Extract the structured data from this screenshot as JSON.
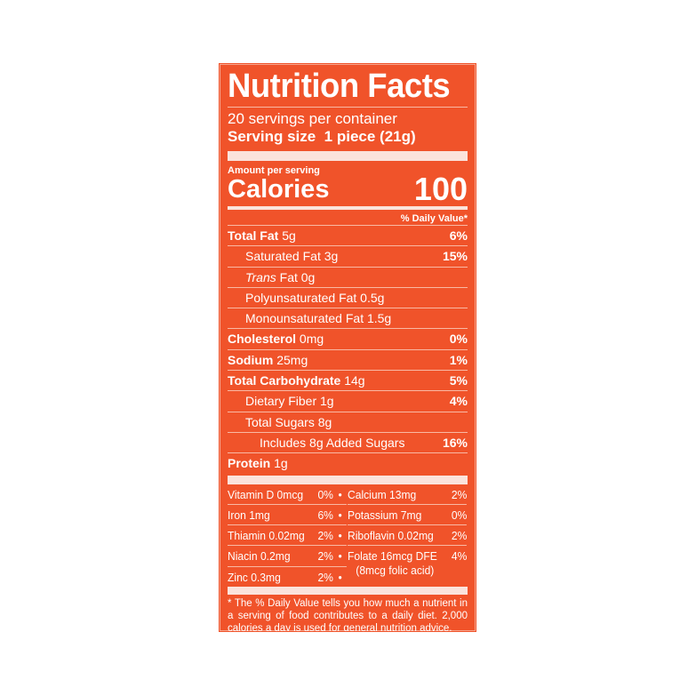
{
  "title": "Nutrition Facts",
  "servings": "20 servings per container",
  "serving_size_label": "Serving size",
  "serving_size_value": "1 piece (21g)",
  "amount_per_serving": "Amount per serving",
  "calories_label": "Calories",
  "calories_value": "100",
  "daily_value_header": "% Daily Value*",
  "nutrients": [
    {
      "name": "Total Fat",
      "amount": "5g",
      "dv": "6%"
    },
    {
      "name": "Saturated Fat",
      "amount": "3g",
      "dv": "15%"
    },
    {
      "name": "Trans",
      "amount": "Fat 0g",
      "dv": ""
    },
    {
      "name": "Polyunsaturated Fat 0.5g",
      "amount": "",
      "dv": ""
    },
    {
      "name": "Monounsaturated Fat 1.5g",
      "amount": "",
      "dv": ""
    },
    {
      "name": "Cholesterol",
      "amount": "0mg",
      "dv": "0%"
    },
    {
      "name": "Sodium",
      "amount": "25mg",
      "dv": "1%"
    },
    {
      "name": "Total Carbohydrate",
      "amount": "14g",
      "dv": "5%"
    },
    {
      "name": "Dietary Fiber 1g",
      "amount": "",
      "dv": "4%"
    },
    {
      "name": "Total Sugars 8g",
      "amount": "",
      "dv": ""
    },
    {
      "name": "Includes 8g Added Sugars",
      "amount": "",
      "dv": "16%"
    },
    {
      "name": "Protein",
      "amount": "1g",
      "dv": ""
    }
  ],
  "vitamins": [
    {
      "name": "Vitamin D 0mcg",
      "dv": "0%"
    },
    {
      "name": "Calcium 13mg",
      "dv": "2%"
    },
    {
      "name": "Iron 1mg",
      "dv": "6%"
    },
    {
      "name": "Potassium 7mg",
      "dv": "0%"
    },
    {
      "name": "Thiamin 0.02mg",
      "dv": "2%"
    },
    {
      "name": "Riboflavin 0.02mg",
      "dv": "2%"
    },
    {
      "name": "Niacin 0.2mg",
      "dv": "2%"
    },
    {
      "name": "Folate 16mcg DFE",
      "sub": "(8mcg folic acid)",
      "dv": "4%"
    },
    {
      "name": "Zinc 0.3mg",
      "dv": "2%"
    }
  ],
  "bullet": "•",
  "footnote": "* The % Daily Value tells you how much a nutrient in a serving of food contributes to a daily diet. 2,000 calories a day is used for general nutrition advice.",
  "colors": {
    "background": "#f0532a",
    "text": "#ffffff"
  }
}
